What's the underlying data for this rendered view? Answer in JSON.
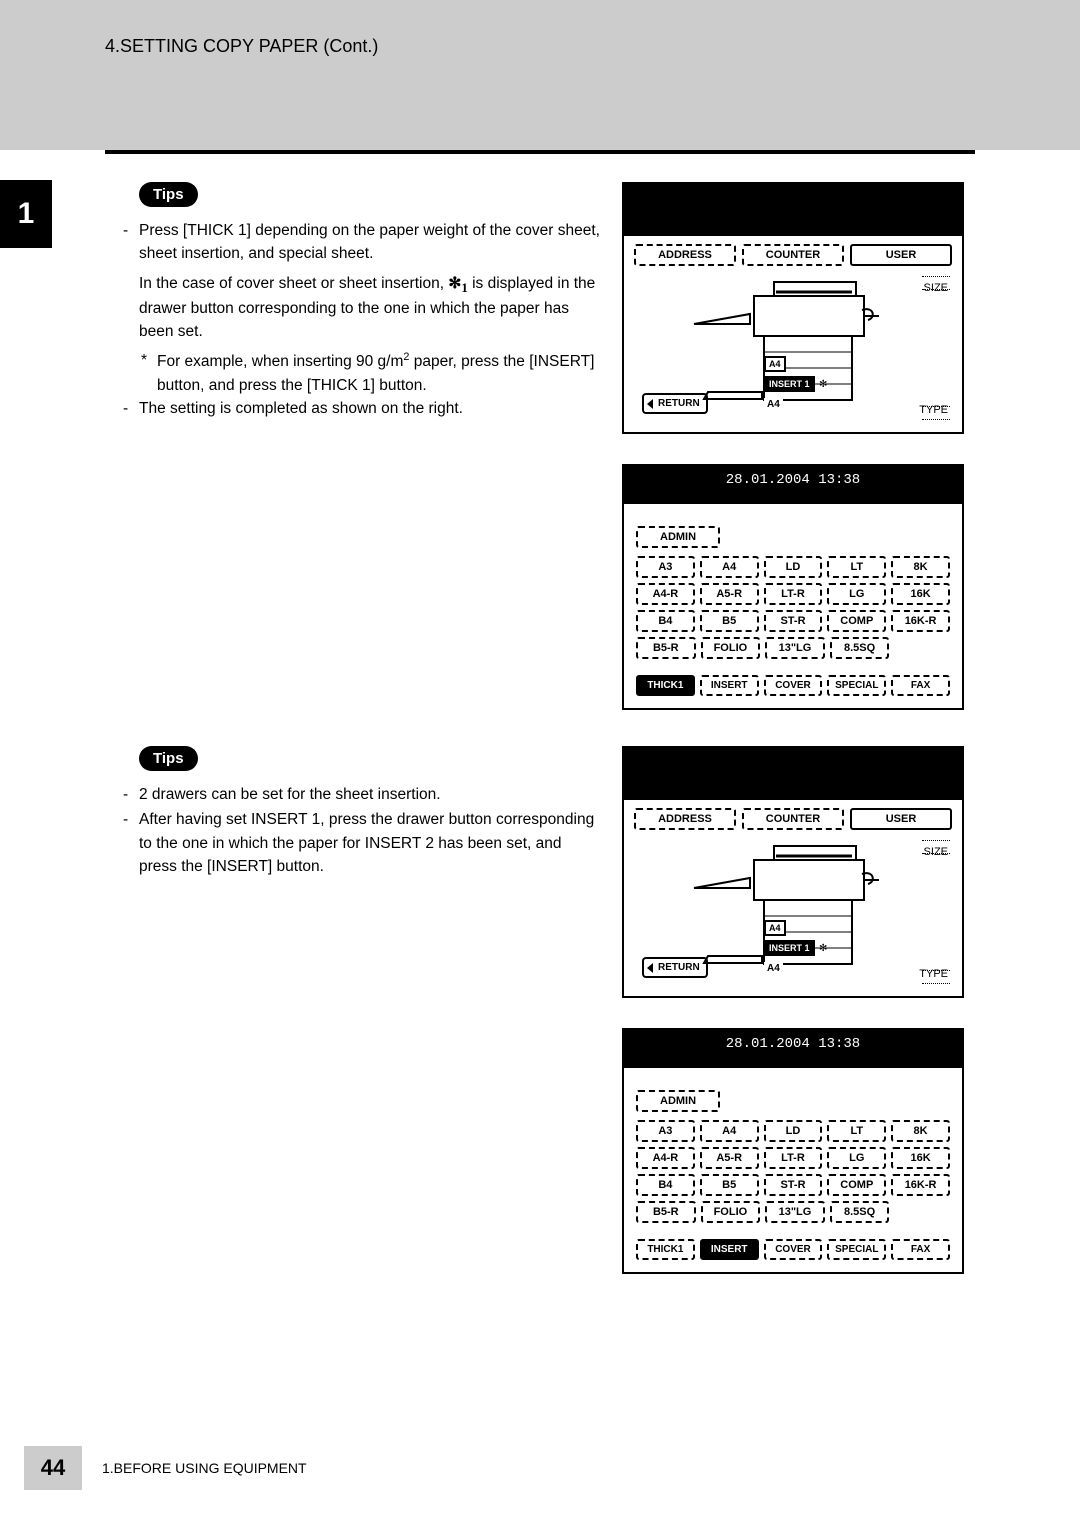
{
  "header": {
    "title": "4.SETTING COPY PAPER (Cont.)"
  },
  "chapter_badge": "1",
  "tips1": {
    "label": "Tips",
    "bullet1": "Press [THICK 1] depending on the paper weight of the cover sheet, sheet insertion, and special sheet.",
    "para1_pre": "In the case of cover sheet or sheet insertion, ",
    "para1_post": " is displayed in the drawer button corresponding to the one in which the paper has been set.",
    "symbol_sub": "1",
    "sub1_pre": "For example, when inserting 90 g/m",
    "sub1_exp": "2",
    "sub1_post": " paper, press the [INSERT] button, and press the [THICK 1] button.",
    "bullet2": "The setting is completed as shown on the right."
  },
  "tips2": {
    "label": "Tips",
    "bullet1": "2 drawers can be set for the sheet insertion.",
    "bullet2": "After having set INSERT 1, press the drawer button corresponding to the one in which the paper for INSERT 2 has been set, and press the [INSERT] button."
  },
  "panel_main": {
    "tabs": [
      "ADDRESS",
      "COUNTER",
      "USER"
    ],
    "size_label": "SIZE",
    "type_label": "TYPE",
    "return_label": "RETURN",
    "drawer_top": "A4",
    "insert_label": "INSERT 1",
    "drawer_bot": "A4"
  },
  "panel_grid": {
    "datetime": "28.01.2004 13:38",
    "admin_label": "ADMIN",
    "rows": [
      [
        "A3",
        "A4",
        "LD",
        "LT",
        "8K"
      ],
      [
        "A4-R",
        "A5-R",
        "LT-R",
        "LG",
        "16K"
      ],
      [
        "B4",
        "B5",
        "ST-R",
        "COMP",
        "16K-R"
      ],
      [
        "B5-R",
        "FOLIO",
        "13\"LG",
        "8.5SQ",
        ""
      ]
    ],
    "bottom_row": [
      "THICK1",
      "INSERT",
      "COVER",
      "SPECIAL",
      "FAX"
    ]
  },
  "footer": {
    "page_num": "44",
    "text": "1.BEFORE USING EQUIPMENT"
  },
  "highlight": {
    "first_panel_bottom": "THICK1",
    "second_panel_bottom": "INSERT"
  }
}
